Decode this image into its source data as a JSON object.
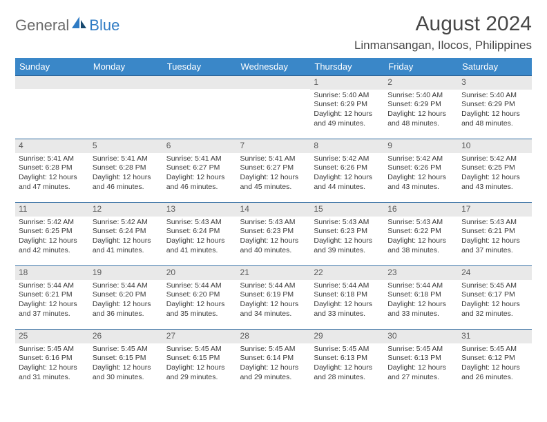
{
  "logo": {
    "part1": "General",
    "part2": "Blue"
  },
  "title": "August 2024",
  "subtitle": "Linmansangan, Ilocos, Philippines",
  "colors": {
    "header_bg": "#3a87c8",
    "header_text": "#ffffff",
    "row_border": "#2f6aa0",
    "daynum_bg": "#e9e9e9",
    "text": "#3a3a3a",
    "logo_gray": "#6a6a6a",
    "logo_blue": "#2f7bc4"
  },
  "weekdays": [
    "Sunday",
    "Monday",
    "Tuesday",
    "Wednesday",
    "Thursday",
    "Friday",
    "Saturday"
  ],
  "weeks": [
    [
      null,
      null,
      null,
      null,
      {
        "n": "1",
        "sr": "5:40 AM",
        "ss": "6:29 PM",
        "dl": "12 hours and 49 minutes."
      },
      {
        "n": "2",
        "sr": "5:40 AM",
        "ss": "6:29 PM",
        "dl": "12 hours and 48 minutes."
      },
      {
        "n": "3",
        "sr": "5:40 AM",
        "ss": "6:29 PM",
        "dl": "12 hours and 48 minutes."
      }
    ],
    [
      {
        "n": "4",
        "sr": "5:41 AM",
        "ss": "6:28 PM",
        "dl": "12 hours and 47 minutes."
      },
      {
        "n": "5",
        "sr": "5:41 AM",
        "ss": "6:28 PM",
        "dl": "12 hours and 46 minutes."
      },
      {
        "n": "6",
        "sr": "5:41 AM",
        "ss": "6:27 PM",
        "dl": "12 hours and 46 minutes."
      },
      {
        "n": "7",
        "sr": "5:41 AM",
        "ss": "6:27 PM",
        "dl": "12 hours and 45 minutes."
      },
      {
        "n": "8",
        "sr": "5:42 AM",
        "ss": "6:26 PM",
        "dl": "12 hours and 44 minutes."
      },
      {
        "n": "9",
        "sr": "5:42 AM",
        "ss": "6:26 PM",
        "dl": "12 hours and 43 minutes."
      },
      {
        "n": "10",
        "sr": "5:42 AM",
        "ss": "6:25 PM",
        "dl": "12 hours and 43 minutes."
      }
    ],
    [
      {
        "n": "11",
        "sr": "5:42 AM",
        "ss": "6:25 PM",
        "dl": "12 hours and 42 minutes."
      },
      {
        "n": "12",
        "sr": "5:42 AM",
        "ss": "6:24 PM",
        "dl": "12 hours and 41 minutes."
      },
      {
        "n": "13",
        "sr": "5:43 AM",
        "ss": "6:24 PM",
        "dl": "12 hours and 41 minutes."
      },
      {
        "n": "14",
        "sr": "5:43 AM",
        "ss": "6:23 PM",
        "dl": "12 hours and 40 minutes."
      },
      {
        "n": "15",
        "sr": "5:43 AM",
        "ss": "6:23 PM",
        "dl": "12 hours and 39 minutes."
      },
      {
        "n": "16",
        "sr": "5:43 AM",
        "ss": "6:22 PM",
        "dl": "12 hours and 38 minutes."
      },
      {
        "n": "17",
        "sr": "5:43 AM",
        "ss": "6:21 PM",
        "dl": "12 hours and 37 minutes."
      }
    ],
    [
      {
        "n": "18",
        "sr": "5:44 AM",
        "ss": "6:21 PM",
        "dl": "12 hours and 37 minutes."
      },
      {
        "n": "19",
        "sr": "5:44 AM",
        "ss": "6:20 PM",
        "dl": "12 hours and 36 minutes."
      },
      {
        "n": "20",
        "sr": "5:44 AM",
        "ss": "6:20 PM",
        "dl": "12 hours and 35 minutes."
      },
      {
        "n": "21",
        "sr": "5:44 AM",
        "ss": "6:19 PM",
        "dl": "12 hours and 34 minutes."
      },
      {
        "n": "22",
        "sr": "5:44 AM",
        "ss": "6:18 PM",
        "dl": "12 hours and 33 minutes."
      },
      {
        "n": "23",
        "sr": "5:44 AM",
        "ss": "6:18 PM",
        "dl": "12 hours and 33 minutes."
      },
      {
        "n": "24",
        "sr": "5:45 AM",
        "ss": "6:17 PM",
        "dl": "12 hours and 32 minutes."
      }
    ],
    [
      {
        "n": "25",
        "sr": "5:45 AM",
        "ss": "6:16 PM",
        "dl": "12 hours and 31 minutes."
      },
      {
        "n": "26",
        "sr": "5:45 AM",
        "ss": "6:15 PM",
        "dl": "12 hours and 30 minutes."
      },
      {
        "n": "27",
        "sr": "5:45 AM",
        "ss": "6:15 PM",
        "dl": "12 hours and 29 minutes."
      },
      {
        "n": "28",
        "sr": "5:45 AM",
        "ss": "6:14 PM",
        "dl": "12 hours and 29 minutes."
      },
      {
        "n": "29",
        "sr": "5:45 AM",
        "ss": "6:13 PM",
        "dl": "12 hours and 28 minutes."
      },
      {
        "n": "30",
        "sr": "5:45 AM",
        "ss": "6:13 PM",
        "dl": "12 hours and 27 minutes."
      },
      {
        "n": "31",
        "sr": "5:45 AM",
        "ss": "6:12 PM",
        "dl": "12 hours and 26 minutes."
      }
    ]
  ]
}
